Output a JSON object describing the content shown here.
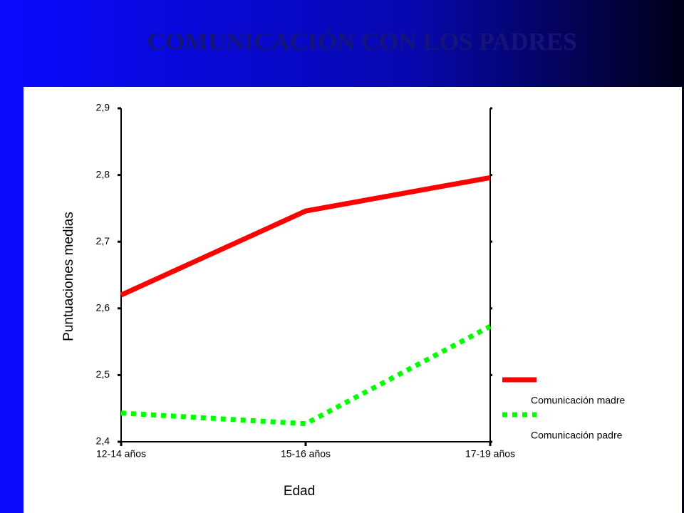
{
  "chart_data": {
    "type": "line",
    "title": "COMUNICACIÓN CON LOS PADRES",
    "x_label": "Edad",
    "y_label": "Puntuaciones medias",
    "categories": [
      "12-14 años",
      "15-16 años",
      "17-19 años"
    ],
    "series": [
      {
        "name": "Comunicación madre",
        "color": "#ff0000",
        "line_style": "solid",
        "values": [
          2.62,
          2.746,
          2.796
        ]
      },
      {
        "name": "Comunicación padre",
        "color": "#00ff00",
        "line_style": "dotted",
        "values": [
          2.443,
          2.427,
          2.573
        ]
      }
    ],
    "ylim": [
      2.4,
      2.9
    ],
    "yticks": [
      {
        "value": 2.4,
        "label": "2,4"
      },
      {
        "value": 2.5,
        "label": "2,5"
      },
      {
        "value": 2.6,
        "label": "2,6"
      },
      {
        "value": 2.7,
        "label": "2,7"
      },
      {
        "value": 2.8,
        "label": "2,8"
      },
      {
        "value": 2.9,
        "label": "2,9"
      }
    ]
  }
}
